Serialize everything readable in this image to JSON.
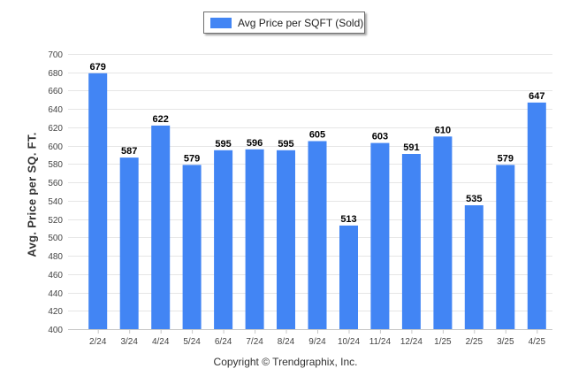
{
  "colors": {
    "bar": "#4285f4",
    "grid": "#e6e6e6",
    "axis": "#c8c8c8"
  },
  "legend": {
    "label": "Avg Price per SQFT (Sold)"
  },
  "footer": {
    "copyright": "Copyright © Trendgraphix, Inc."
  },
  "chart_data": {
    "type": "bar",
    "categories": [
      "2/24",
      "3/24",
      "4/24",
      "5/24",
      "6/24",
      "7/24",
      "8/24",
      "9/24",
      "10/24",
      "11/24",
      "12/24",
      "1/25",
      "2/25",
      "3/25",
      "4/25"
    ],
    "series": [
      {
        "name": "Avg Price per SQFT (Sold)",
        "values": [
          679,
          587,
          622,
          579,
          595,
          596,
          595,
          605,
          513,
          603,
          591,
          610,
          535,
          579,
          647
        ]
      }
    ],
    "xlabel": "",
    "ylabel": "Avg. Price per SQ. FT.",
    "ylim": [
      400,
      700
    ],
    "yticks": [
      400,
      420,
      440,
      460,
      480,
      500,
      520,
      540,
      560,
      580,
      600,
      620,
      640,
      660,
      680,
      700
    ],
    "grid": true,
    "legend_position": "top-center",
    "data_labels": true
  }
}
